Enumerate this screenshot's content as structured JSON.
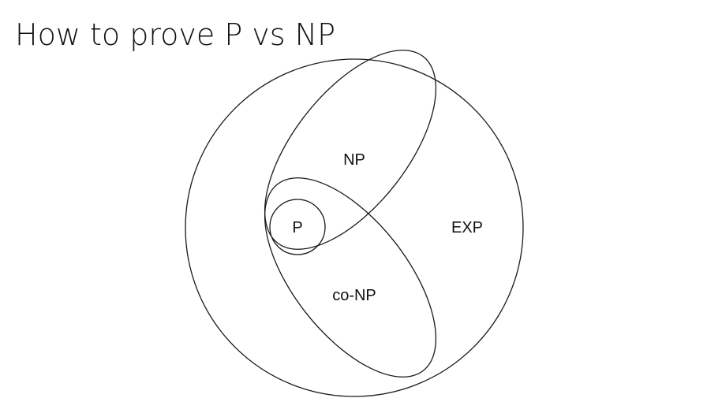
{
  "slide": {
    "title": "How to prove P vs NP"
  },
  "diagram": {
    "sets": [
      {
        "id": "exp",
        "label": "EXP",
        "contains": [
          "np",
          "co-np"
        ]
      },
      {
        "id": "np",
        "label": "NP",
        "contains": [
          "p"
        ]
      },
      {
        "id": "co-np",
        "label": "co-NP",
        "contains": [
          "p"
        ]
      },
      {
        "id": "p",
        "label": "P",
        "contains": []
      }
    ],
    "stroke_color": "#1a1a1a",
    "background_color": "#ffffff"
  }
}
